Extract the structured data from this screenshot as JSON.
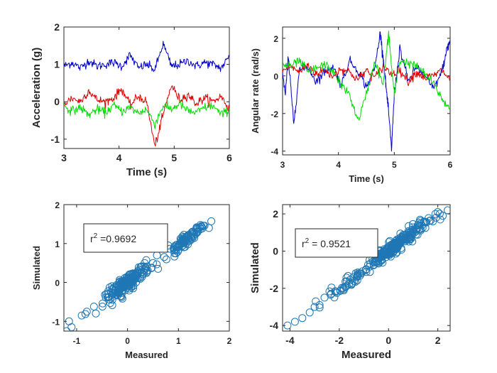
{
  "chart_data": [
    {
      "id": "acc",
      "type": "line",
      "xlabel": "Time (s)",
      "ylabel": "Acceleration (g)",
      "xlim": [
        3,
        6
      ],
      "ylim": [
        -1.25,
        2
      ],
      "xticks": [
        3,
        4,
        5,
        6
      ],
      "yticks": [
        -1,
        0,
        1,
        2
      ],
      "grid": false,
      "series": [
        {
          "color": "#0000cc",
          "x": [
            3.0,
            3.15,
            3.3,
            3.45,
            3.6,
            3.75,
            3.9,
            4.05,
            4.2,
            4.35,
            4.5,
            4.65,
            4.8,
            4.95,
            5.1,
            5.25,
            5.4,
            5.55,
            5.7,
            5.85,
            6.0
          ],
          "y": [
            0.95,
            1.05,
            0.9,
            1.1,
            0.95,
            1.0,
            1.05,
            0.95,
            1.25,
            0.9,
            1.0,
            0.85,
            1.55,
            0.95,
            1.0,
            1.1,
            0.95,
            1.05,
            1.0,
            0.9,
            1.2
          ]
        },
        {
          "color": "#dd0000",
          "x": [
            3.0,
            3.15,
            3.3,
            3.45,
            3.6,
            3.75,
            3.9,
            4.05,
            4.2,
            4.35,
            4.5,
            4.65,
            4.8,
            4.95,
            5.1,
            5.25,
            5.4,
            5.55,
            5.7,
            5.85,
            6.0
          ],
          "y": [
            -0.05,
            0.1,
            0.0,
            0.3,
            0.05,
            0.0,
            0.1,
            0.35,
            -0.1,
            0.15,
            0.0,
            -1.2,
            -0.35,
            0.45,
            0.05,
            0.2,
            -0.05,
            0.1,
            0.0,
            0.15,
            -0.2
          ]
        },
        {
          "color": "#00dd00",
          "x": [
            3.0,
            3.15,
            3.3,
            3.45,
            3.6,
            3.75,
            3.9,
            4.05,
            4.2,
            4.35,
            4.5,
            4.65,
            4.8,
            4.95,
            5.1,
            5.25,
            5.4,
            5.55,
            5.7,
            5.85,
            6.0
          ],
          "y": [
            -0.1,
            -0.25,
            -0.15,
            -0.35,
            -0.2,
            -0.3,
            -0.1,
            -0.25,
            -0.15,
            -0.3,
            -0.2,
            -0.6,
            -0.1,
            -0.2,
            -0.05,
            -0.25,
            -0.3,
            -0.15,
            -0.1,
            -0.35,
            -0.2
          ]
        }
      ]
    },
    {
      "id": "gyro",
      "type": "line",
      "xlabel": "Time (s)",
      "ylabel": "Angular rate (rad/s)",
      "xlim": [
        3,
        6
      ],
      "ylim": [
        -4.2,
        2.6
      ],
      "xticks": [
        3,
        4,
        5,
        6
      ],
      "yticks": [
        -4,
        -2,
        0,
        2
      ],
      "grid": false,
      "series": [
        {
          "color": "#0000cc",
          "x": [
            3.0,
            3.05,
            3.1,
            3.2,
            3.3,
            3.45,
            3.6,
            3.75,
            3.9,
            4.05,
            4.2,
            4.35,
            4.5,
            4.65,
            4.75,
            4.8,
            4.85,
            4.9,
            4.95,
            5.0,
            5.1,
            5.25,
            5.4,
            5.55,
            5.7,
            5.85,
            5.95,
            6.0
          ],
          "y": [
            0.2,
            -1.0,
            1.0,
            -2.5,
            0.3,
            0.5,
            -0.3,
            0.2,
            0.5,
            -0.5,
            0.8,
            0.3,
            -0.6,
            0.4,
            2.3,
            1.0,
            -0.5,
            -2.0,
            -3.9,
            -1.0,
            1.5,
            -0.3,
            0.5,
            0.0,
            -0.7,
            0.2,
            1.5,
            1.8
          ]
        },
        {
          "color": "#dd0000",
          "x": [
            3.0,
            3.15,
            3.3,
            3.45,
            3.6,
            3.75,
            3.9,
            4.05,
            4.2,
            4.35,
            4.5,
            4.65,
            4.8,
            4.95,
            5.1,
            5.25,
            5.4,
            5.55,
            5.7,
            5.85,
            6.0
          ],
          "y": [
            0.3,
            0.5,
            0.2,
            0.6,
            0.1,
            0.3,
            0.0,
            0.4,
            0.2,
            -0.2,
            0.3,
            -0.1,
            0.5,
            0.1,
            0.3,
            -0.3,
            0.2,
            -0.1,
            0.0,
            0.3,
            -0.2
          ]
        },
        {
          "color": "#00dd00",
          "x": [
            3.0,
            3.15,
            3.3,
            3.45,
            3.6,
            3.75,
            3.9,
            4.05,
            4.2,
            4.35,
            4.5,
            4.65,
            4.8,
            4.9,
            4.95,
            5.0,
            5.1,
            5.25,
            5.4,
            5.55,
            5.7,
            5.85,
            6.0
          ],
          "y": [
            0.6,
            0.5,
            0.8,
            0.2,
            0.4,
            0.6,
            0.3,
            -0.5,
            -1.0,
            -2.4,
            -1.0,
            0.8,
            -0.5,
            2.3,
            0.5,
            -1.0,
            0.8,
            0.7,
            0.5,
            0.1,
            -0.4,
            -1.2,
            -1.8
          ]
        }
      ]
    },
    {
      "id": "scatter1",
      "type": "scatter",
      "xlabel": "Measured",
      "ylabel": "Simulated",
      "xlim": [
        -1.25,
        2
      ],
      "ylim": [
        -1.25,
        2
      ],
      "xticks": [
        -1,
        0,
        1,
        2
      ],
      "yticks": [
        -1,
        0,
        1,
        2
      ],
      "grid": false,
      "color": "#1f77b4",
      "annotation": {
        "prefix": "r",
        "sup": "2",
        "suffix": " =0.9692"
      },
      "clusters": [
        {
          "cx": 0.0,
          "cy": 0.0,
          "sx": 0.22,
          "n": 190,
          "noise": 0.1
        },
        {
          "cx": 1.15,
          "cy": 1.1,
          "sx": 0.18,
          "n": 90,
          "noise": 0.07
        }
      ],
      "points": [
        [
          -1.2,
          -1.25
        ],
        [
          -1.1,
          -1.15
        ],
        [
          -1.15,
          -1.0
        ],
        [
          -0.9,
          -0.85
        ],
        [
          -0.8,
          -0.75
        ],
        [
          0.5,
          0.5
        ],
        [
          0.6,
          0.35
        ],
        [
          0.8,
          0.95
        ],
        [
          1.6,
          1.4
        ],
        [
          1.45,
          1.45
        ]
      ]
    },
    {
      "id": "scatter2",
      "type": "scatter",
      "xlabel": "Measured",
      "ylabel": "Simulated",
      "xlim": [
        -4.3,
        2.5
      ],
      "ylim": [
        -4.3,
        2.5
      ],
      "xticks": [
        -4,
        -2,
        0,
        2
      ],
      "yticks": [
        -4,
        -2,
        0,
        2
      ],
      "grid": false,
      "color": "#1f77b4",
      "annotation": {
        "prefix": "r",
        "sup": "2",
        "suffix": " = 0.9521"
      },
      "clusters": [
        {
          "cx": 0.3,
          "cy": 0.3,
          "sx": 0.6,
          "n": 230,
          "noise": 0.18
        },
        {
          "cx": -1.6,
          "cy": -1.6,
          "sx": 0.45,
          "n": 45,
          "noise": 0.2
        }
      ],
      "points": [
        [
          -4.1,
          -4.0
        ],
        [
          -3.8,
          -3.8
        ],
        [
          -3.5,
          -3.6
        ],
        [
          -3.2,
          -3.3
        ],
        [
          -3.0,
          -3.0
        ],
        [
          -2.8,
          -2.9
        ],
        [
          -2.6,
          -2.5
        ],
        [
          1.8,
          1.6
        ],
        [
          2.0,
          2.1
        ],
        [
          2.2,
          1.9
        ],
        [
          2.4,
          2.2
        ],
        [
          1.9,
          2.0
        ],
        [
          2.1,
          1.7
        ]
      ]
    }
  ]
}
